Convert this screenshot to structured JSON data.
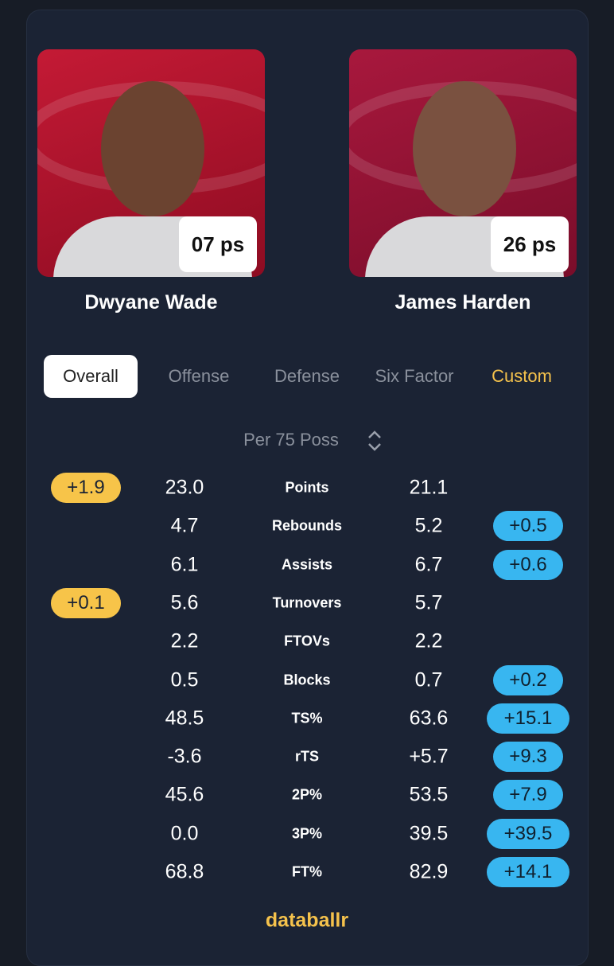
{
  "players": [
    {
      "name": "Dwyane Wade",
      "badge": "07 ps"
    },
    {
      "name": "James Harden",
      "badge": "26 ps"
    }
  ],
  "tabs": [
    "Overall",
    "Offense",
    "Defense",
    "Six Factor",
    "Custom"
  ],
  "selector": "Per 75 Poss",
  "rows": [
    {
      "label": "Points",
      "left": "23.0",
      "right": "21.1",
      "left_diff": "+1.9",
      "right_diff": null
    },
    {
      "label": "Rebounds",
      "left": "4.7",
      "right": "5.2",
      "left_diff": null,
      "right_diff": "+0.5"
    },
    {
      "label": "Assists",
      "left": "6.1",
      "right": "6.7",
      "left_diff": null,
      "right_diff": "+0.6"
    },
    {
      "label": "Turnovers",
      "left": "5.6",
      "right": "5.7",
      "left_diff": "+0.1",
      "right_diff": null
    },
    {
      "label": "FTOVs",
      "left": "2.2",
      "right": "2.2",
      "left_diff": null,
      "right_diff": null
    },
    {
      "label": "Blocks",
      "left": "0.5",
      "right": "0.7",
      "left_diff": null,
      "right_diff": "+0.2"
    },
    {
      "label": "TS%",
      "left": "48.5",
      "right": "63.6",
      "left_diff": null,
      "right_diff": "+15.1"
    },
    {
      "label": "rTS",
      "left": "-3.6",
      "right": "+5.7",
      "left_diff": null,
      "right_diff": "+9.3"
    },
    {
      "label": "2P%",
      "left": "45.6",
      "right": "53.5",
      "left_diff": null,
      "right_diff": "+7.9"
    },
    {
      "label": "3P%",
      "left": "0.0",
      "right": "39.5",
      "left_diff": null,
      "right_diff": "+39.5"
    },
    {
      "label": "FT%",
      "left": "68.8",
      "right": "82.9",
      "left_diff": null,
      "right_diff": "+14.1"
    }
  ],
  "footer": "databallr"
}
